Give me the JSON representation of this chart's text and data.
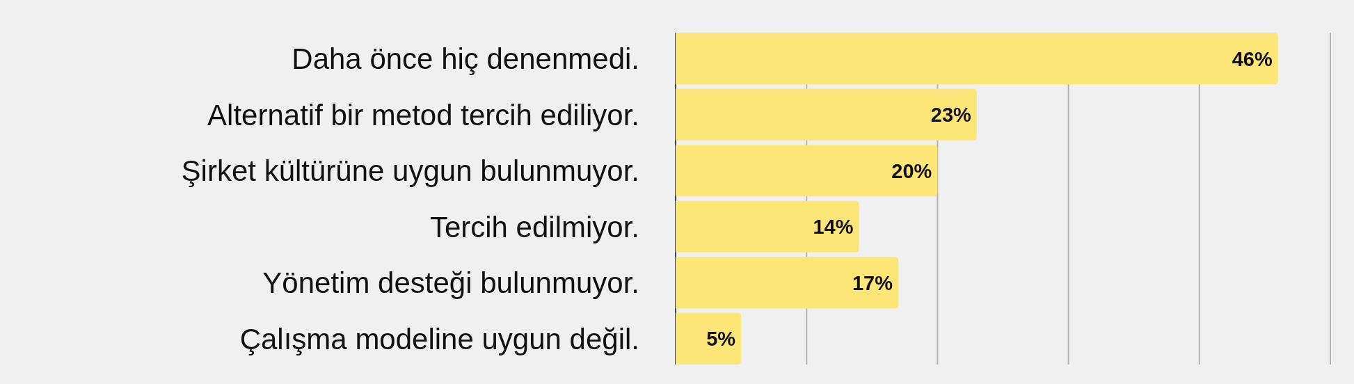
{
  "chart_data": {
    "type": "bar",
    "orientation": "horizontal",
    "categories": [
      "Daha önce hiç denenmedi.",
      "Alternatif bir metod tercih ediliyor.",
      "Şirket kültürüne uygun bulunmuyor.",
      "Tercih edilmiyor.",
      "Yönetim desteği bulunmuyor.",
      "Çalışma modeline uygun değil."
    ],
    "values": [
      46,
      23,
      20,
      14,
      17,
      5
    ],
    "value_labels": [
      "46%",
      "23%",
      "20%",
      "14%",
      "17%",
      "5%"
    ],
    "color": "#fce677",
    "xlim": [
      0,
      50
    ],
    "xticks": [
      0,
      10,
      20,
      30,
      40,
      50
    ],
    "grid": "x",
    "tick_labels": "y"
  }
}
